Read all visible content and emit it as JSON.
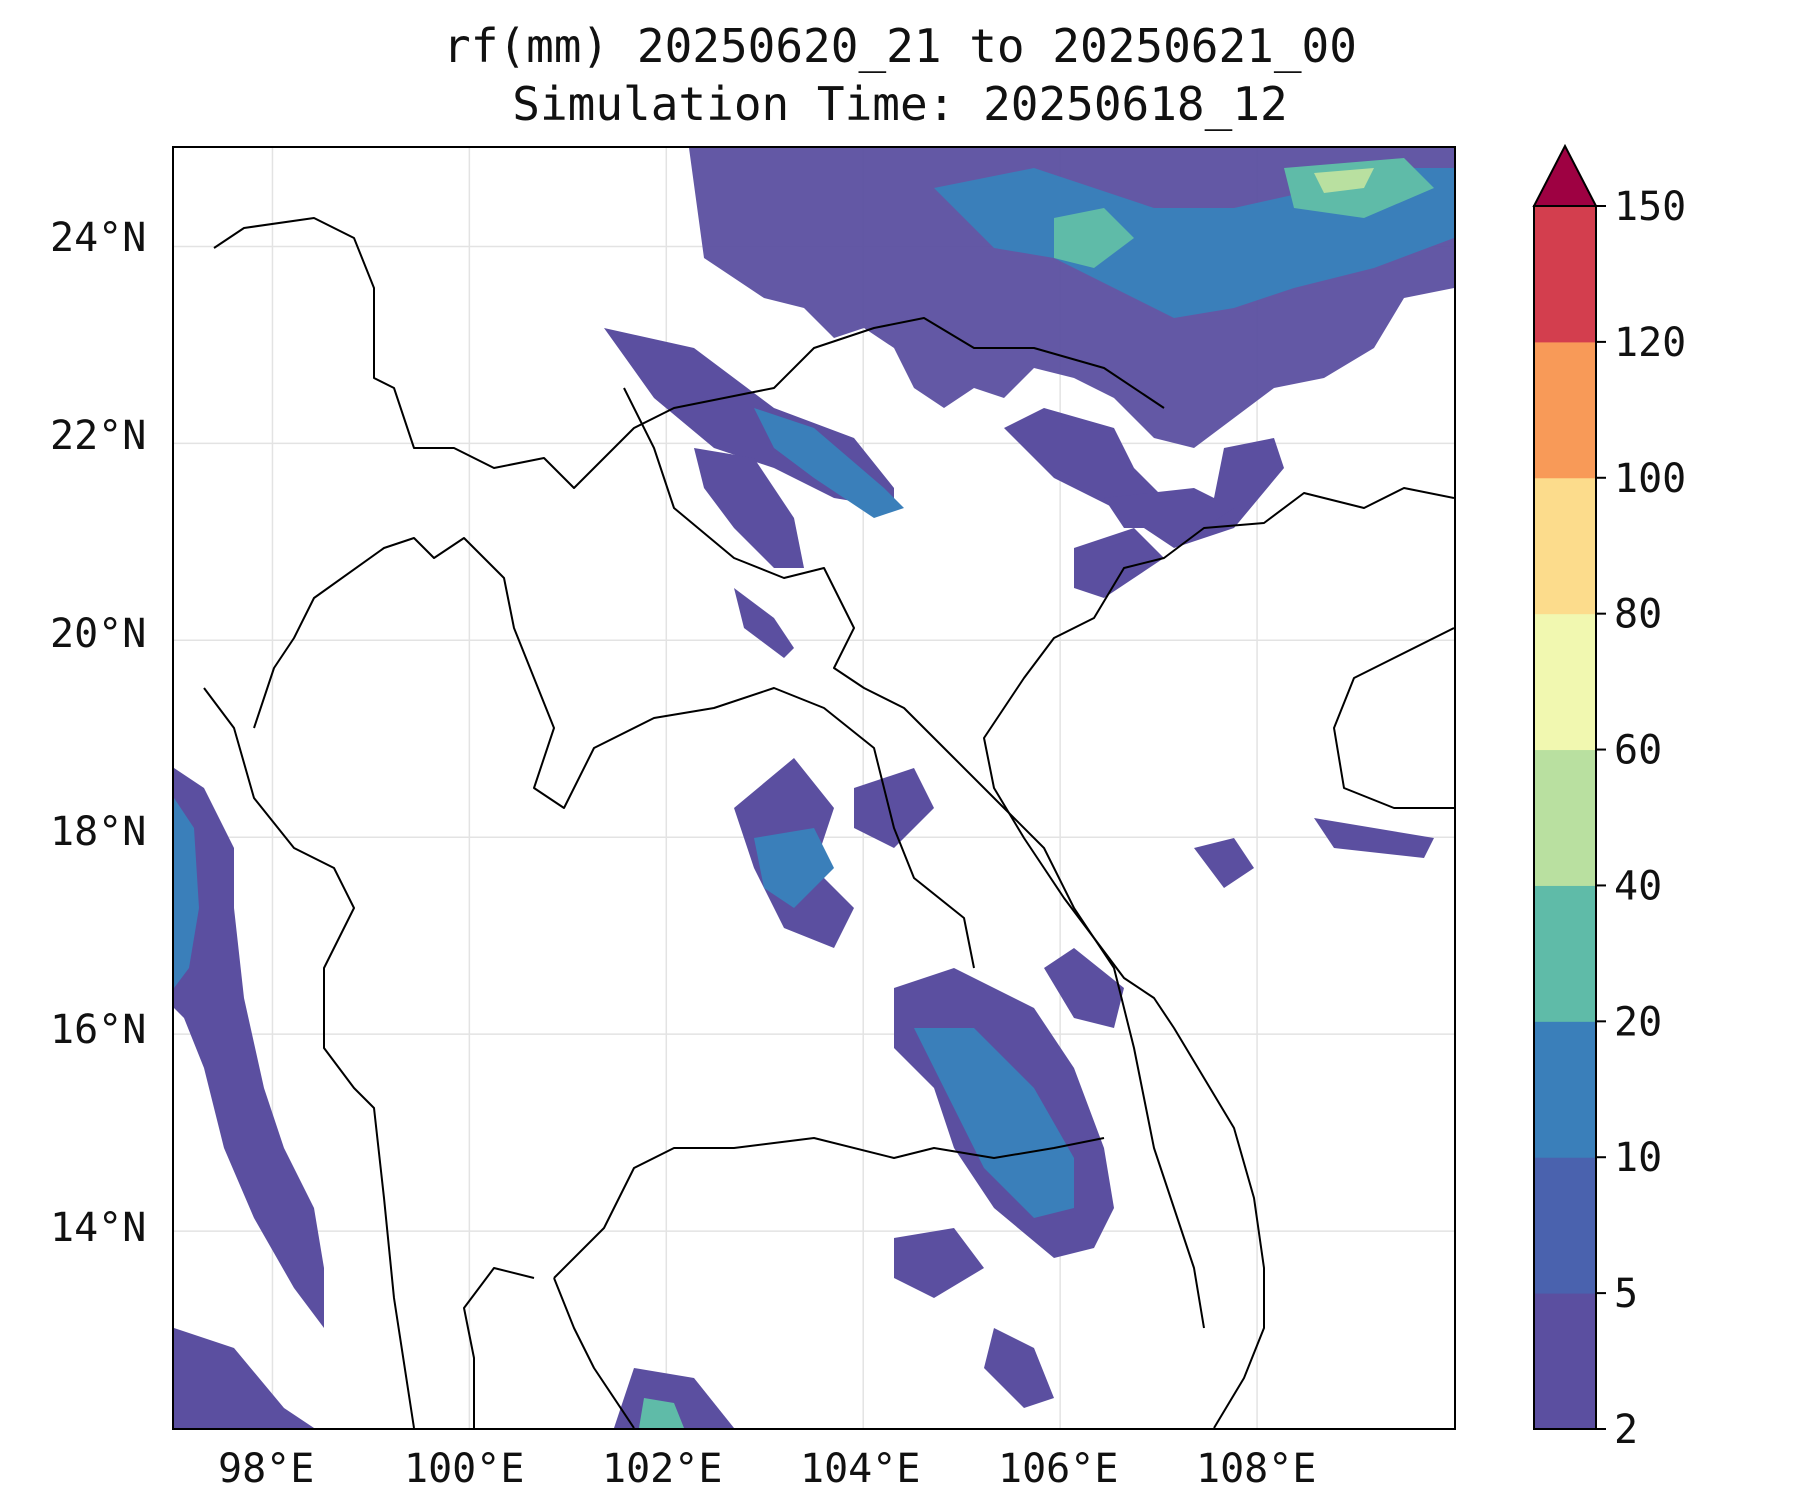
{
  "title": {
    "line1": "rf(mm) 20250620_21 to 20250621_00",
    "line2": "Simulation Time: 20250618_12"
  },
  "map": {
    "lon_range": [
      97.0,
      110.0
    ],
    "lat_range": [
      12.0,
      25.0
    ],
    "x_ticks": [
      "98°E",
      "100°E",
      "102°E",
      "104°E",
      "106°E",
      "108°E"
    ],
    "y_ticks": [
      "24°N",
      "22°N",
      "20°N",
      "18°N",
      "16°N",
      "14°N"
    ],
    "gridlines": true
  },
  "colorbar": {
    "levels": [
      "2",
      "5",
      "10",
      "20",
      "40",
      "60",
      "80",
      "100",
      "120",
      "150"
    ],
    "colors": [
      "#5b4fa0",
      "#4a62ae",
      "#3a7fba",
      "#5fbba8",
      "#b9e0a0",
      "#f1f8b0",
      "#fcdc8c",
      "#f89a58",
      "#d33e4e",
      "#9e0142"
    ],
    "extend": "max"
  }
}
